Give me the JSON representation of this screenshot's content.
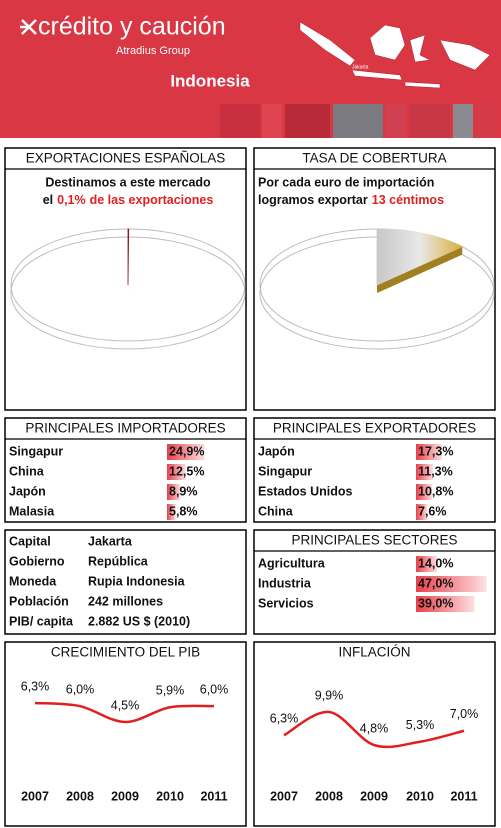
{
  "header": {
    "brand": "crédito y caución",
    "group": "Atradius Group",
    "country": "Indonesia",
    "map_label": "Jakarta"
  },
  "exportaciones": {
    "title": "EXPORTACIONES ESPAÑOLAS",
    "line1": "Destinamos a este mercado",
    "prefix": "el",
    "value": 0.1,
    "value_label": "0,1%",
    "suffix": "de las exportaciones"
  },
  "cobertura": {
    "title": "TASA DE COBERTURA",
    "line1": "Por cada euro de importación",
    "prefix": "logramos exportar",
    "value": 13,
    "value_label": "13 céntimos"
  },
  "importadores": {
    "title": "PRINCIPALES IMPORTADORES",
    "categories": [
      "Singapur",
      "China",
      "Japón",
      "Malasia"
    ],
    "values": [
      24.9,
      12.5,
      8.9,
      5.8
    ],
    "value_labels": [
      "24,9%",
      "12,5%",
      "8,9%",
      "5,8%"
    ]
  },
  "exportadores": {
    "title": "PRINCIPALES EXPORTADORES",
    "categories": [
      "Japón",
      "Singapur",
      "Estados Unidos",
      "China"
    ],
    "values": [
      17.3,
      11.3,
      10.8,
      7.6
    ],
    "value_labels": [
      "17,3%",
      "11,3%",
      "10,8%",
      "7,6%"
    ]
  },
  "datos": {
    "rows": [
      [
        "Capital",
        "Jakarta"
      ],
      [
        "Gobierno",
        "República"
      ],
      [
        "Moneda",
        "Rupia Indonesia"
      ],
      [
        "Población",
        "242 millones"
      ],
      [
        "PIB/ capita",
        "2.882 US $ (2010)"
      ]
    ]
  },
  "sectores": {
    "title": "PRINCIPALES SECTORES",
    "categories": [
      "Agricultura",
      "Industria",
      "Servicios"
    ],
    "values": [
      14.0,
      47.0,
      39.0
    ],
    "value_labels": [
      "14,0%",
      "47,0%",
      "39,0%"
    ]
  },
  "pib": {
    "title": "CRECIMIENTO DEL PIB",
    "categories": [
      "2007",
      "2008",
      "2009",
      "2010",
      "2011"
    ],
    "values": [
      6.3,
      6.0,
      4.5,
      5.9,
      6.0
    ],
    "value_labels": [
      "6,3%",
      "6,0%",
      "4,5%",
      "5,9%",
      "6,0%"
    ],
    "color": "#e02020"
  },
  "inflacion": {
    "title": "INFLACIÓN",
    "categories": [
      "2007",
      "2008",
      "2009",
      "2010",
      "2011"
    ],
    "values": [
      6.3,
      9.9,
      4.8,
      5.3,
      7.0
    ],
    "value_labels": [
      "6,3%",
      "9,9%",
      "4,8%",
      "5,3%",
      "7,0%"
    ],
    "color": "#e02020"
  }
}
